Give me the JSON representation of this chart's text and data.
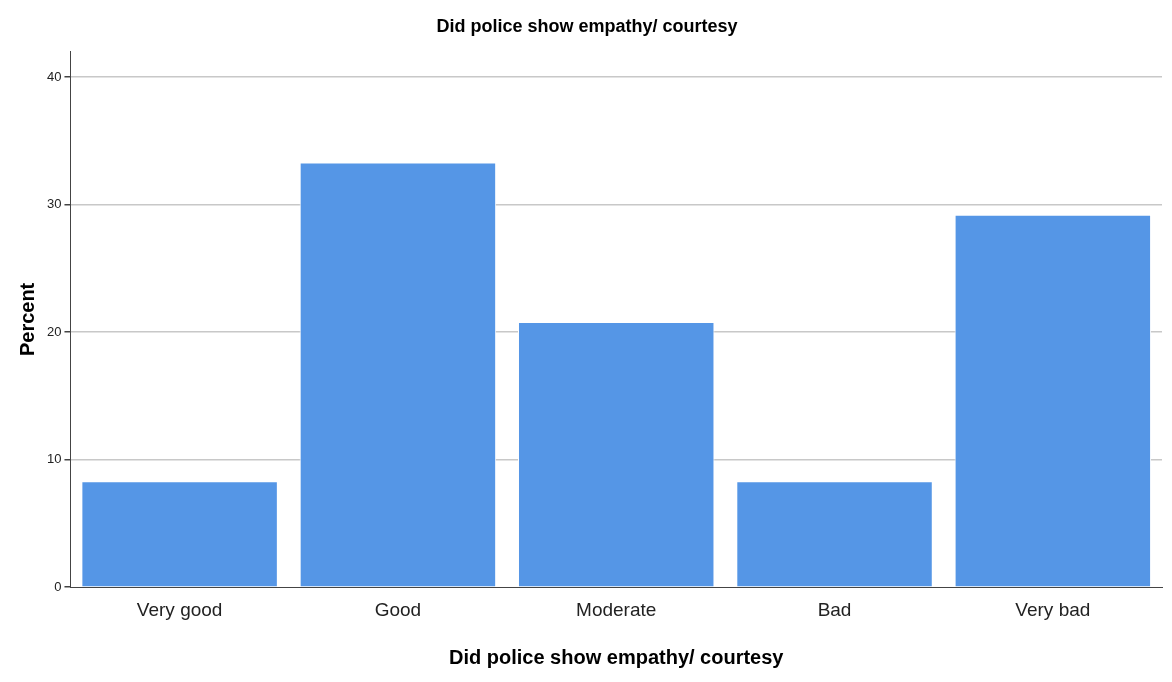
{
  "chart_data": {
    "type": "bar",
    "title": "Did police show empathy/ courtesy",
    "xlabel": "Did police show empathy/ courtesy",
    "ylabel": "Percent",
    "categories": [
      "Very good",
      "Good",
      "Moderate",
      "Bad",
      "Very bad"
    ],
    "values": [
      8.3,
      33.3,
      20.8,
      8.3,
      29.2
    ],
    "color": "#5596e6",
    "ylim": [
      0,
      42
    ],
    "yticks": [
      0,
      10,
      20,
      30,
      40
    ],
    "grid": "y",
    "legend": false
  }
}
